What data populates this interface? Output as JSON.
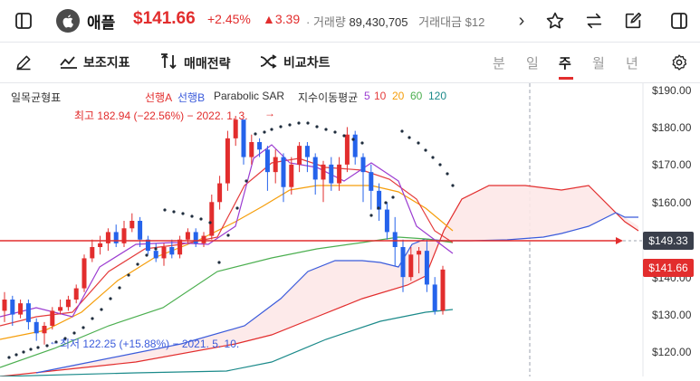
{
  "header": {
    "stock_name": "애플",
    "price": "$141.66",
    "change_pct": "+2.45%",
    "change_abs": "▲3.39",
    "volume_label": "· 거래량",
    "volume_value": "89,430,705",
    "turnover_label": "거래대금 $12",
    "more_arrow": "›"
  },
  "toolbar": {
    "indicator_label": "보조지표",
    "strategy_label": "매매전략",
    "compare_label": "비교차트",
    "periods": [
      "분",
      "일",
      "주",
      "월",
      "년"
    ],
    "active_period": "주"
  },
  "legend": {
    "ichimoku": "일목균형표",
    "span_a": "선행A",
    "span_b": "선행B",
    "sar": "Parabolic SAR",
    "ma_label": "지수이동평균",
    "ma5": "5",
    "ma10": "10",
    "ma20": "20",
    "ma60": "60",
    "ma120": "120"
  },
  "annotations": {
    "high": "최고 182.94 (−22.56%) − 2022. 1. 3.",
    "low": "최저 122.25 (+15.88%) − 2021. 5. 10."
  },
  "axis": {
    "ticks": [
      "$190.00",
      "$180.00",
      "$170.00",
      "$160.00",
      "$150.00",
      "$140.00",
      "$130.00",
      "$120.00"
    ],
    "current_price_tag": "$141.66",
    "crosshair_tag": "$149.33"
  },
  "colors": {
    "up": "#e22d2d",
    "down": "#2563eb",
    "ma5": "#9b3cd1",
    "ma10": "#e43d3d",
    "ma20": "#f59e0b",
    "ma60": "#4caf50",
    "ma120": "#1b8a8a",
    "span_a": "#e22d2d",
    "span_b": "#3b5bdb",
    "cloud": "#fde8e8"
  },
  "icons": {
    "sidebar_left": "sidebar-left-icon",
    "favorite": "star-icon",
    "swap": "swap-icon",
    "edit": "edit-icon",
    "sidebar_right": "sidebar-right-icon",
    "draw": "pencil-icon",
    "indicator": "indicator-icon",
    "strategy": "strategy-icon",
    "compare": "compare-icon",
    "settings": "gear-icon"
  }
}
